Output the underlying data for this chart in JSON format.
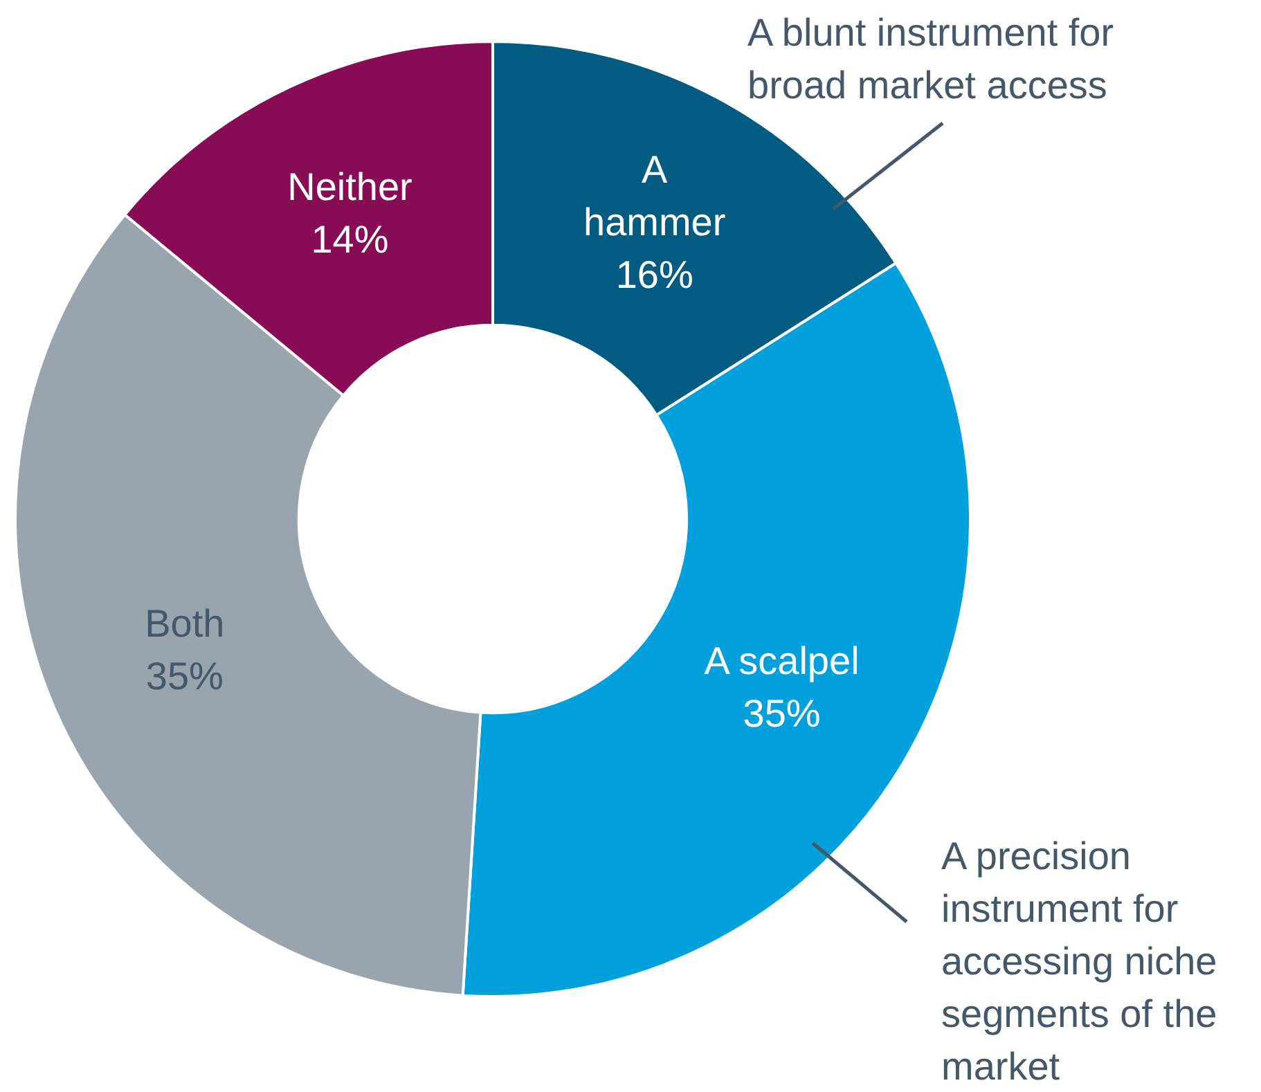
{
  "chart_data": {
    "type": "donut",
    "categories": [
      "A hammer",
      "A scalpel",
      "Both",
      "Neither"
    ],
    "values": [
      16,
      35,
      35,
      14
    ],
    "colors": [
      "#025b80",
      "#00a0dc",
      "#98a4ae",
      "#870c55"
    ],
    "value_labels": [
      "16%",
      "35%",
      "35%",
      "14%"
    ],
    "legend": false,
    "annotations": [
      "A blunt instrument for broad market access",
      "A precision instrument for accessing niche segments of the market"
    ]
  }
}
